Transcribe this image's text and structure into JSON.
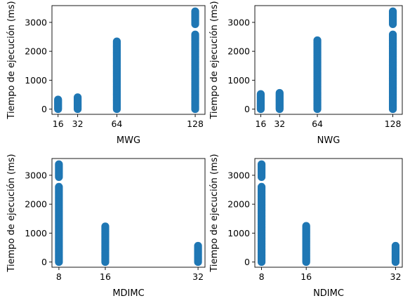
{
  "chart_data": [
    {
      "type": "scatter",
      "xlabel": "MWG",
      "ylabel": "Tiempo de ejecución (ms)",
      "xlim": [
        11,
        136
      ],
      "ylim": [
        -180,
        3580
      ],
      "xticks": [
        16,
        32,
        64,
        128
      ],
      "xtick_labels": [
        "16",
        "32",
        "64",
        "128"
      ],
      "yticks": [
        0,
        1000,
        2000,
        3000
      ],
      "ytick_labels": [
        "0",
        "1000",
        "2000",
        "3000"
      ],
      "marker_color": "#1f77b4",
      "series": [
        {
          "x": 16,
          "ranges": [
            [
              0,
              330
            ]
          ]
        },
        {
          "x": 32,
          "ranges": [
            [
              0,
              410
            ]
          ]
        },
        {
          "x": 64,
          "ranges": [
            [
              0,
              2340
            ]
          ]
        },
        {
          "x": 128,
          "ranges": [
            [
              0,
              2580
            ],
            [
              2940,
              3380
            ]
          ]
        }
      ]
    },
    {
      "type": "scatter",
      "xlabel": "NWG",
      "ylabel": "Tiempo de ejecución (ms)",
      "xlim": [
        11,
        136
      ],
      "ylim": [
        -180,
        3580
      ],
      "xticks": [
        16,
        32,
        64,
        128
      ],
      "xtick_labels": [
        "16",
        "32",
        "64",
        "128"
      ],
      "yticks": [
        0,
        1000,
        2000,
        3000
      ],
      "ytick_labels": [
        "0",
        "1000",
        "2000",
        "3000"
      ],
      "marker_color": "#1f77b4",
      "series": [
        {
          "x": 16,
          "ranges": [
            [
              0,
              520
            ]
          ]
        },
        {
          "x": 32,
          "ranges": [
            [
              0,
              560
            ]
          ]
        },
        {
          "x": 64,
          "ranges": [
            [
              0,
              2380
            ]
          ]
        },
        {
          "x": 128,
          "ranges": [
            [
              0,
              2580
            ],
            [
              2940,
              3380
            ]
          ]
        }
      ]
    },
    {
      "type": "scatter",
      "xlabel": "MDIMC",
      "ylabel": "Tiempo de ejecución (ms)",
      "xlim": [
        6.8,
        33.2
      ],
      "ylim": [
        -180,
        3580
      ],
      "xticks": [
        8,
        16,
        32
      ],
      "xtick_labels": [
        "8",
        "16",
        "32"
      ],
      "yticks": [
        0,
        1000,
        2000,
        3000
      ],
      "ytick_labels": [
        "0",
        "1000",
        "2000",
        "3000"
      ],
      "marker_color": "#1f77b4",
      "series": [
        {
          "x": 8,
          "ranges": [
            [
              0,
              2600
            ],
            [
              2940,
              3380
            ]
          ]
        },
        {
          "x": 16,
          "ranges": [
            [
              0,
              1230
            ]
          ]
        },
        {
          "x": 32,
          "ranges": [
            [
              0,
              560
            ]
          ]
        }
      ]
    },
    {
      "type": "scatter",
      "xlabel": "NDIMC",
      "ylabel": "Tiempo de ejecución (ms)",
      "xlim": [
        6.8,
        33.2
      ],
      "ylim": [
        -180,
        3580
      ],
      "xticks": [
        8,
        16,
        32
      ],
      "xtick_labels": [
        "8",
        "16",
        "32"
      ],
      "yticks": [
        0,
        1000,
        2000,
        3000
      ],
      "ytick_labels": [
        "0",
        "1000",
        "2000",
        "3000"
      ],
      "marker_color": "#1f77b4",
      "series": [
        {
          "x": 8,
          "ranges": [
            [
              0,
              2600
            ],
            [
              2940,
              3380
            ]
          ]
        },
        {
          "x": 16,
          "ranges": [
            [
              0,
              1250
            ]
          ]
        },
        {
          "x": 32,
          "ranges": [
            [
              0,
              560
            ]
          ]
        }
      ]
    }
  ]
}
